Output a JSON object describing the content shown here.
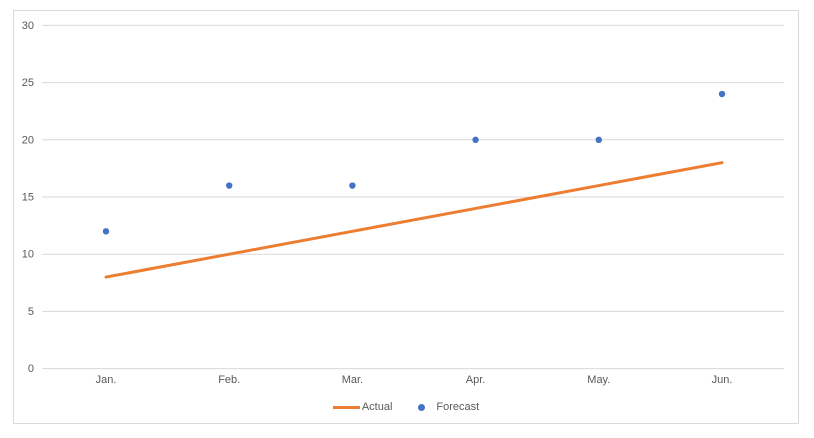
{
  "chart_data": {
    "type": "line",
    "title": "",
    "xlabel": "",
    "ylabel": "",
    "categories": [
      "Jan.",
      "Feb.",
      "Mar.",
      "Apr.",
      "May.",
      "Jun."
    ],
    "series": [
      {
        "name": "Actual",
        "type": "line",
        "values": [
          8,
          10,
          12,
          14,
          16,
          18
        ],
        "color": "#ED7D31"
      },
      {
        "name": "Forecast",
        "type": "scatter",
        "values": [
          12,
          16,
          16,
          20,
          20,
          24
        ],
        "color": "#4472C4"
      }
    ],
    "ylim": [
      0,
      30
    ],
    "yticks": [
      0,
      5,
      10,
      15,
      20,
      25,
      30
    ],
    "grid": "horizontal",
    "legend_position": "bottom"
  },
  "colors": {
    "background": "#FFFFFF",
    "plot_border": "#D9D9D9",
    "gridline": "#D9D9D9",
    "axis_text": "#595959",
    "actual_line": "#ED7D31",
    "forecast_point": "#4472C4"
  }
}
